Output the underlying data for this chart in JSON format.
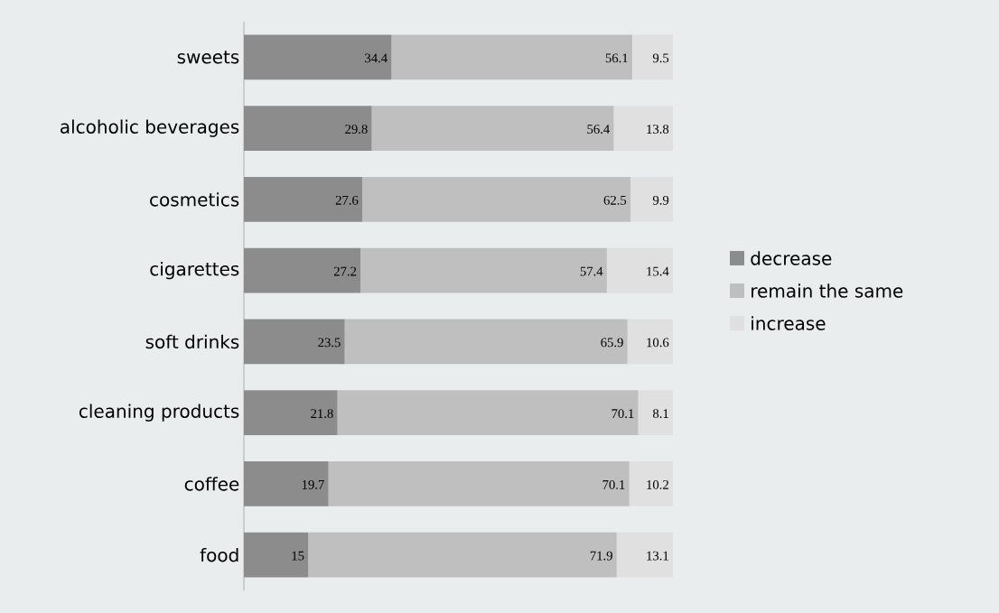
{
  "chart_data": {
    "type": "bar",
    "orientation": "horizontal",
    "stacked": true,
    "data_labels": true,
    "legend": "right",
    "categories": [
      "sweets",
      "alcoholic beverages",
      "cosmetics",
      "cigarettes",
      "soft drinks",
      "cleaning products",
      "coffee",
      "food"
    ],
    "series": [
      {
        "name": "decrease",
        "color": "#8c8c8c",
        "values": [
          34.4,
          29.8,
          27.6,
          27.2,
          23.5,
          21.8,
          19.7,
          15
        ]
      },
      {
        "name": "remain the same",
        "color": "#bfbfbf",
        "values": [
          56.1,
          56.4,
          62.5,
          57.4,
          65.9,
          70.1,
          70.1,
          71.9
        ]
      },
      {
        "name": "increase",
        "color": "#e0e0e0",
        "values": [
          9.5,
          13.8,
          9.9,
          15.4,
          10.6,
          8.1,
          10.2,
          13.1
        ]
      }
    ]
  }
}
